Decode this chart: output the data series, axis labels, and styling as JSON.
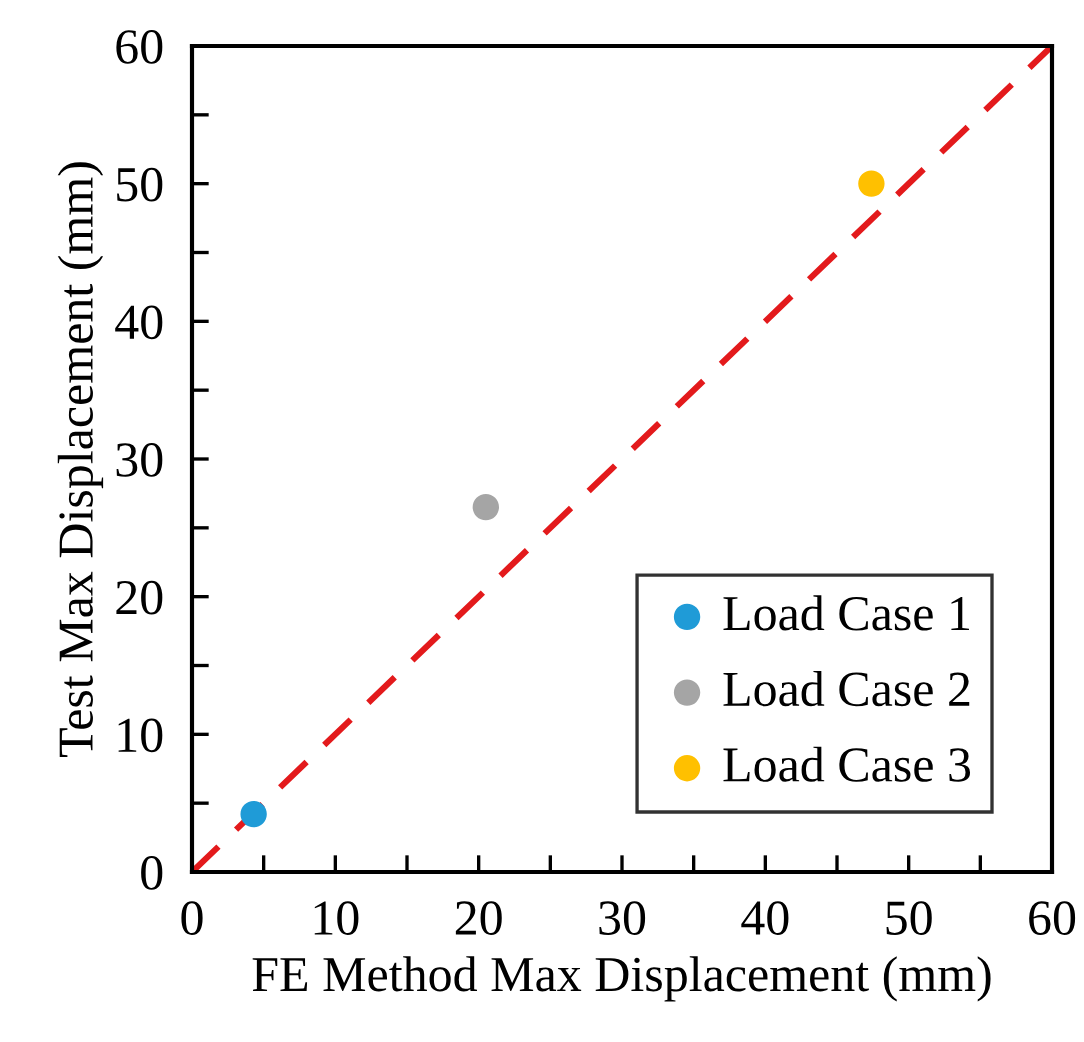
{
  "chart_data": {
    "type": "scatter",
    "xlabel": "FE Method Max Displacement (mm)",
    "ylabel": "Test Max Displacement (mm)",
    "series": [
      {
        "name": "Load Case 1",
        "color": "#1f9bd7",
        "x": [
          4.3
        ],
        "values": [
          4.2
        ]
      },
      {
        "name": "Load Case 2",
        "color": "#a5a5a5",
        "x": [
          20.5
        ],
        "values": [
          26.5
        ]
      },
      {
        "name": "Load Case 3",
        "color": "#ffc000",
        "x": [
          47.4
        ],
        "values": [
          50
        ]
      },
      {
        "type": "line",
        "color": "#e31a1c",
        "line_style": "dashed",
        "marker": "none",
        "x": [
          0,
          60
        ],
        "values": [
          0,
          60
        ]
      }
    ],
    "marker": "circle",
    "xlim": [
      0,
      60
    ],
    "ylim": [
      0,
      60
    ],
    "xticks": [
      0,
      {
        "value": 5,
        "label": null
      },
      10,
      {
        "value": 15,
        "label": null
      },
      20,
      {
        "value": 25,
        "label": null
      },
      30,
      {
        "value": 35,
        "label": null
      },
      40,
      {
        "value": 45,
        "label": null
      },
      50,
      {
        "value": 55,
        "label": null
      },
      60
    ],
    "yticks": [
      0,
      {
        "value": 5,
        "label": null
      },
      10,
      {
        "value": 15,
        "label": null
      },
      20,
      {
        "value": 25,
        "label": null
      },
      30,
      {
        "value": 35,
        "label": null
      },
      40,
      {
        "value": 45,
        "label": null
      },
      50,
      {
        "value": 55,
        "label": null
      },
      60
    ],
    "grid": false,
    "legend": "bottom right"
  }
}
